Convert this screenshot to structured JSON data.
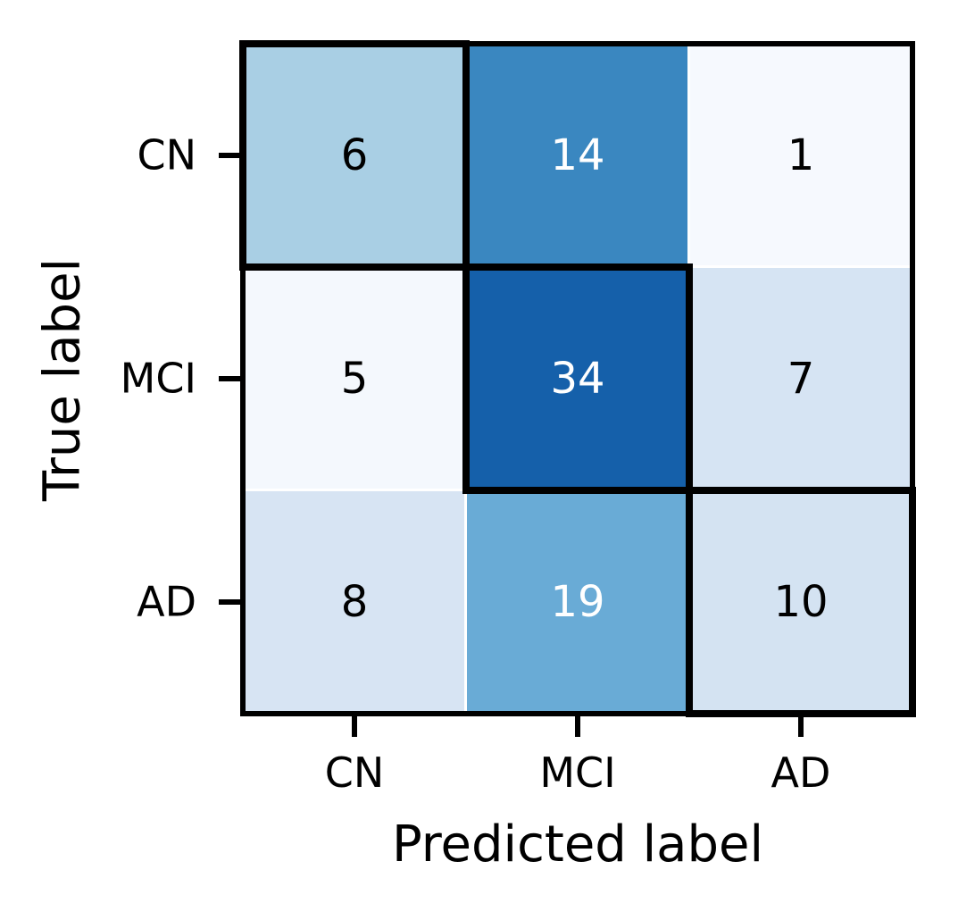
{
  "figure": {
    "background_color": "#ffffff",
    "outer_border_color": "#000000",
    "gridline_color": "#ffffff",
    "highlight_border_color": "#000000",
    "tick_color": "#000000"
  },
  "chart_data": {
    "type": "heatmap",
    "subtype": "confusion-matrix",
    "title": "",
    "xlabel": "Predicted label",
    "ylabel": "True label",
    "x_categories": [
      "CN",
      "MCI",
      "AD"
    ],
    "y_categories": [
      "CN",
      "MCI",
      "AD"
    ],
    "values": [
      [
        6,
        14,
        1
      ],
      [
        5,
        34,
        7
      ],
      [
        8,
        19,
        10
      ]
    ],
    "colormap": "Blues",
    "legend_position": "none",
    "grid": false,
    "highlighted_cells": [
      [
        0,
        0
      ],
      [
        1,
        1
      ],
      [
        2,
        2
      ]
    ],
    "cells": [
      {
        "true_label": "CN",
        "predicted_label": "CN",
        "value": 6,
        "color": "#a9cfe4",
        "text_color": "#000000",
        "highlighted": true
      },
      {
        "true_label": "CN",
        "predicted_label": "MCI",
        "value": 14,
        "color": "#3a87c0",
        "text_color": "#ffffff",
        "highlighted": false
      },
      {
        "true_label": "CN",
        "predicted_label": "AD",
        "value": 1,
        "color": "#f6f9fe",
        "text_color": "#000000",
        "highlighted": false
      },
      {
        "true_label": "MCI",
        "predicted_label": "CN",
        "value": 5,
        "color": "#f4f8fd",
        "text_color": "#000000",
        "highlighted": false
      },
      {
        "true_label": "MCI",
        "predicted_label": "MCI",
        "value": 34,
        "color": "#1560aa",
        "text_color": "#ffffff",
        "highlighted": true
      },
      {
        "true_label": "MCI",
        "predicted_label": "AD",
        "value": 7,
        "color": "#d6e4f3",
        "text_color": "#000000",
        "highlighted": false
      },
      {
        "true_label": "AD",
        "predicted_label": "CN",
        "value": 8,
        "color": "#d7e4f3",
        "text_color": "#000000",
        "highlighted": false
      },
      {
        "true_label": "AD",
        "predicted_label": "MCI",
        "value": 19,
        "color": "#69abd6",
        "text_color": "#ffffff",
        "highlighted": false
      },
      {
        "true_label": "AD",
        "predicted_label": "AD",
        "value": 10,
        "color": "#d4e3f2",
        "text_color": "#000000",
        "highlighted": true
      }
    ]
  }
}
